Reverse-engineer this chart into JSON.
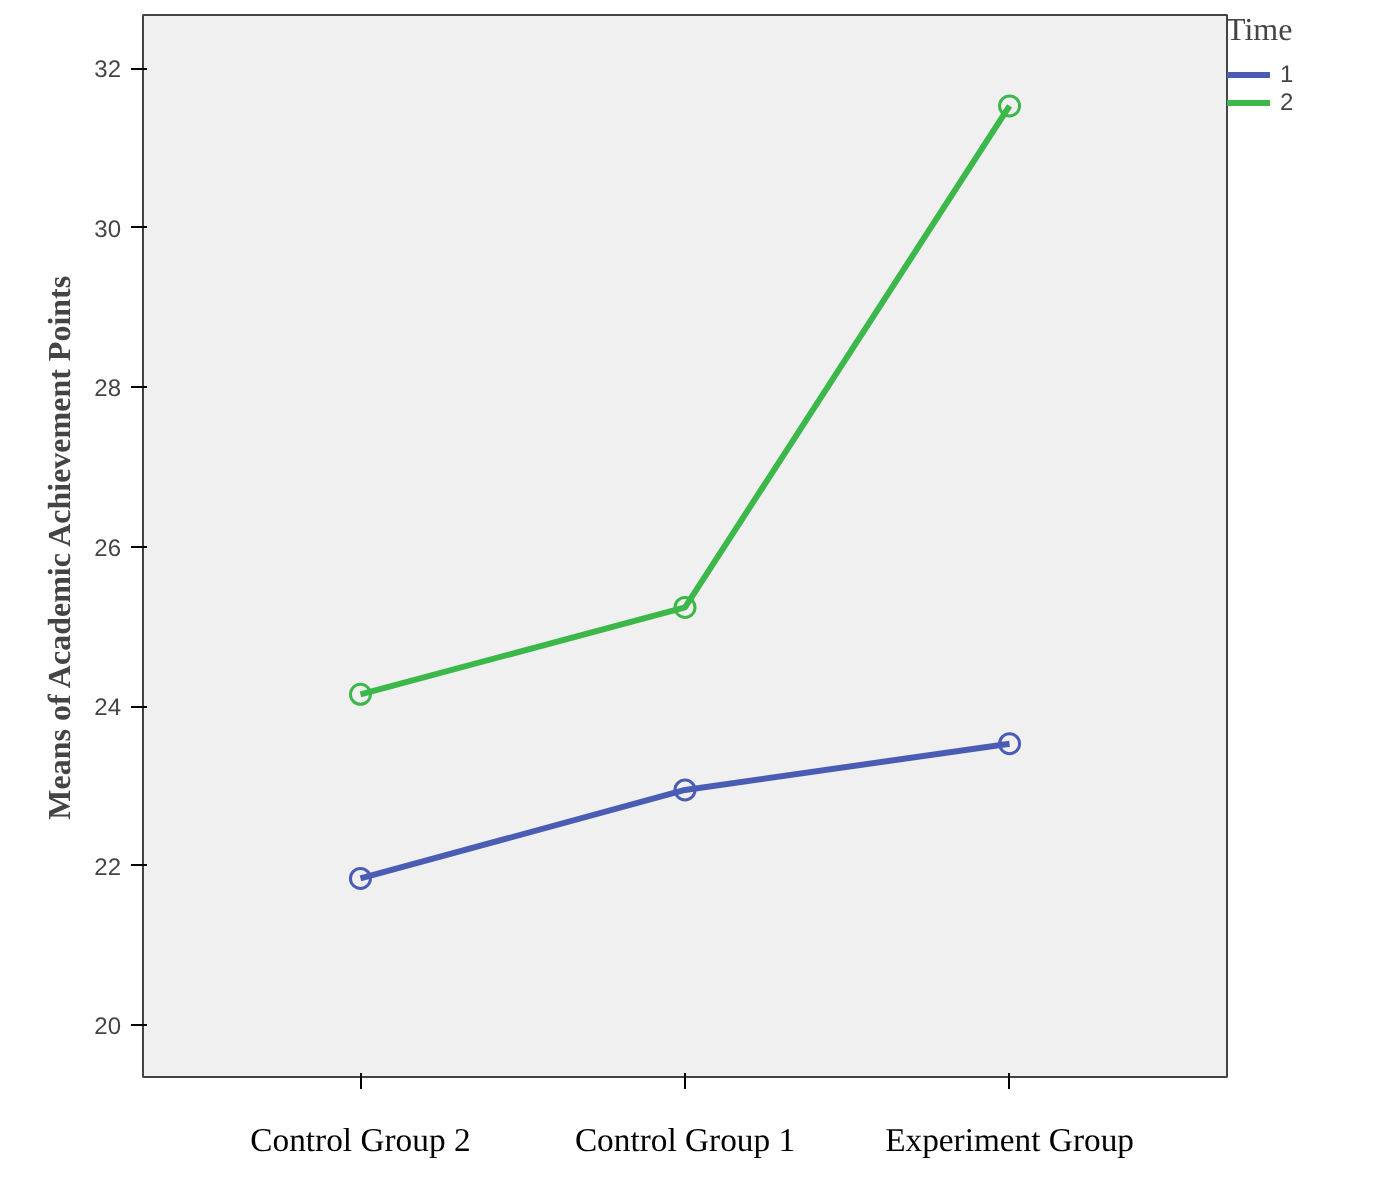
{
  "chart_data": {
    "type": "line",
    "ylabel": "Means of Academic Achievement Points",
    "legend_title": "Time",
    "categories": [
      "Control Group 2",
      "Control Group 1",
      "Experiment Group"
    ],
    "series": [
      {
        "name": "1",
        "color": "#4a5cb4",
        "values": [
          21.84,
          22.95,
          23.53
        ]
      },
      {
        "name": "2",
        "color": "#3cb84a",
        "values": [
          24.15,
          25.24,
          31.53
        ]
      }
    ],
    "ylim": [
      19.35,
      32.67
    ],
    "yticks": [
      20,
      22,
      24,
      26,
      28,
      30,
      32
    ],
    "grid": false,
    "legend": "top right",
    "marker": "circle",
    "line_style": "solid"
  }
}
